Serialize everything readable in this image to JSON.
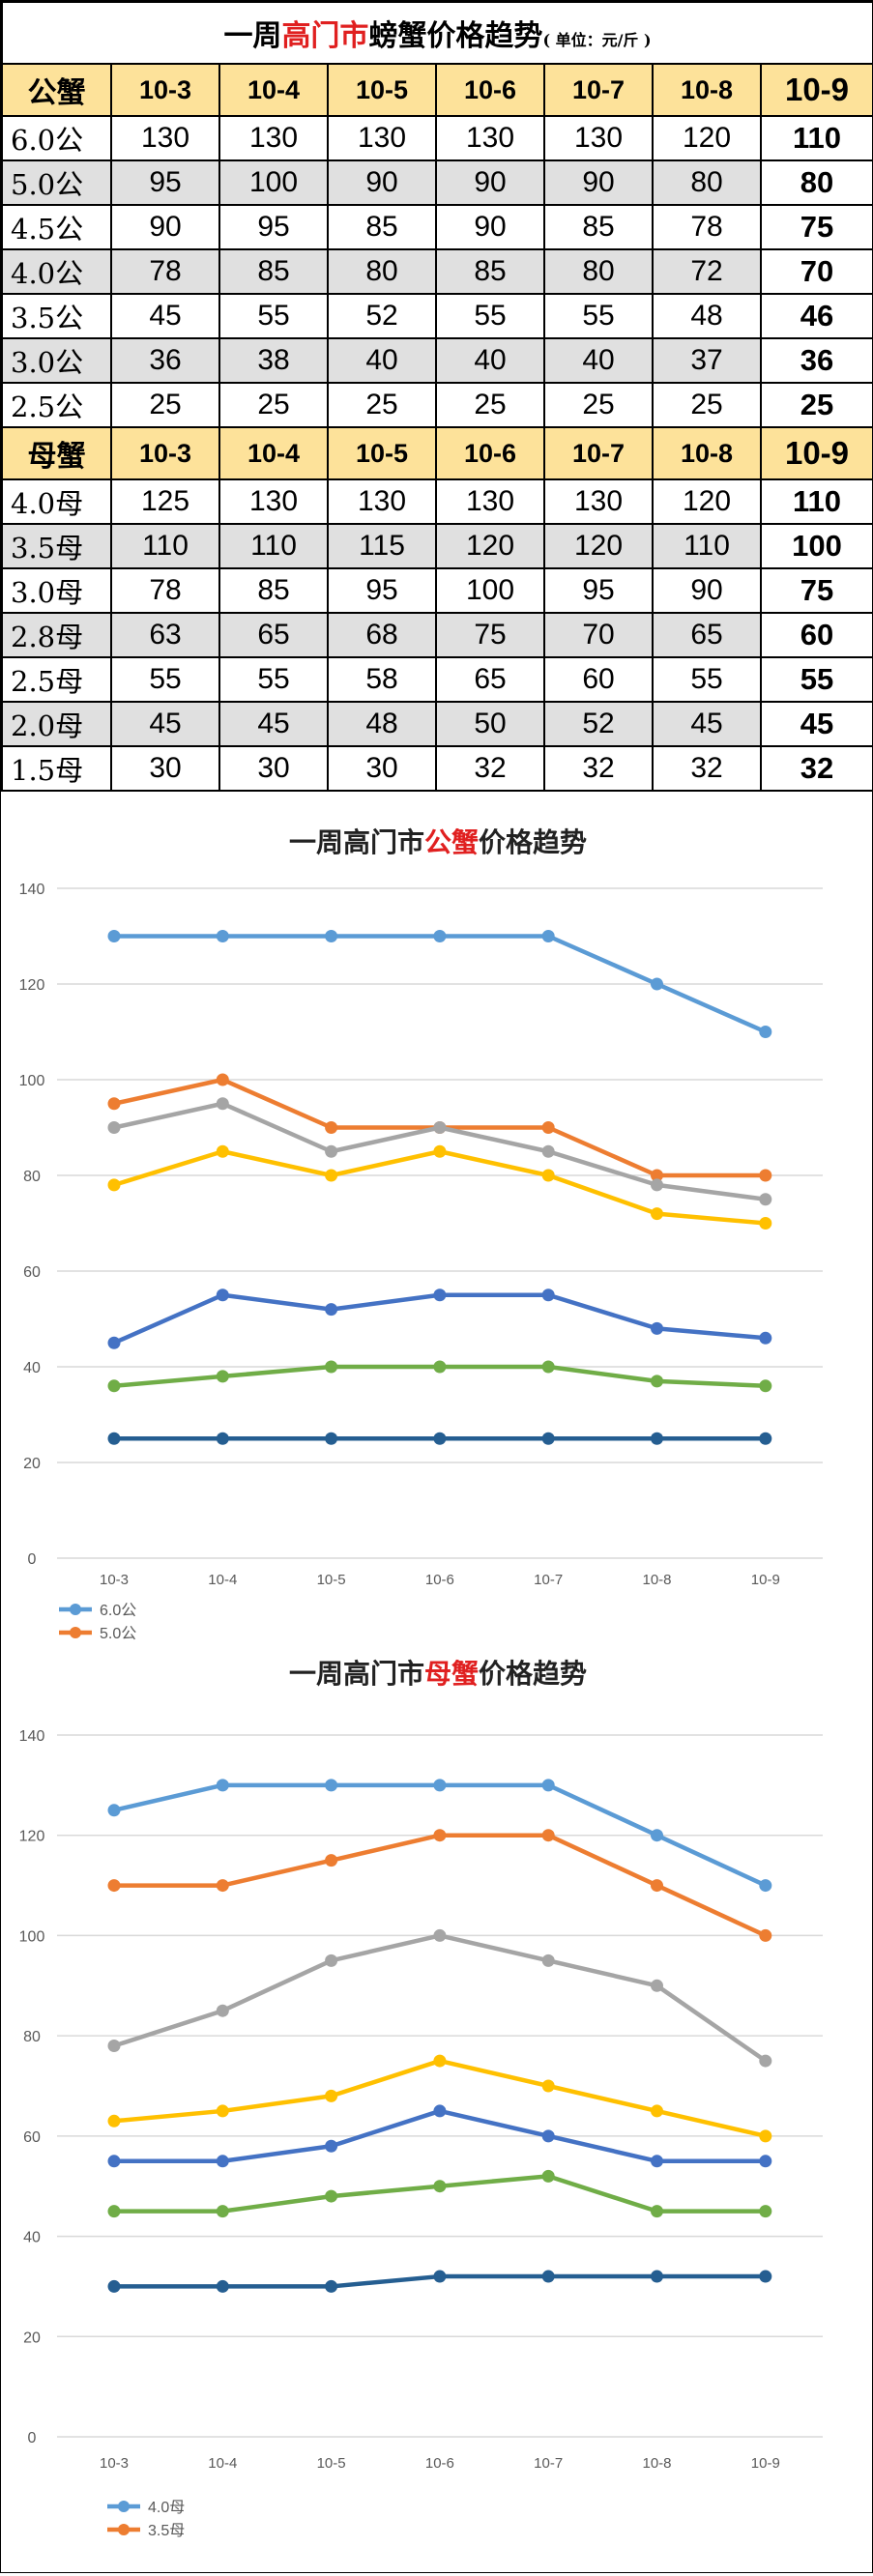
{
  "table": {
    "title_prefix": "一周",
    "title_highlight": "高门市",
    "title_suffix": "螃蟹价格趋势",
    "title_unit": "( 单位：元/斤 )",
    "dates": [
      "10-3",
      "10-4",
      "10-5",
      "10-6",
      "10-7",
      "10-8",
      "10-9"
    ],
    "male_header": "公蟹",
    "female_header": "母蟹",
    "male_rows": [
      {
        "label": "6.0公",
        "values": [
          130,
          130,
          130,
          130,
          130,
          120,
          110
        ]
      },
      {
        "label": "5.0公",
        "values": [
          95,
          100,
          90,
          90,
          90,
          80,
          80
        ]
      },
      {
        "label": "4.5公",
        "values": [
          90,
          95,
          85,
          90,
          85,
          78,
          75
        ]
      },
      {
        "label": "4.0公",
        "values": [
          78,
          85,
          80,
          85,
          80,
          72,
          70
        ]
      },
      {
        "label": "3.5公",
        "values": [
          45,
          55,
          52,
          55,
          55,
          48,
          46
        ]
      },
      {
        "label": "3.0公",
        "values": [
          36,
          38,
          40,
          40,
          40,
          37,
          36
        ]
      },
      {
        "label": "2.5公",
        "values": [
          25,
          25,
          25,
          25,
          25,
          25,
          25
        ]
      }
    ],
    "female_rows": [
      {
        "label": "4.0母",
        "values": [
          125,
          130,
          130,
          130,
          130,
          120,
          110
        ]
      },
      {
        "label": "3.5母",
        "values": [
          110,
          110,
          115,
          120,
          120,
          110,
          100
        ]
      },
      {
        "label": "3.0母",
        "values": [
          78,
          85,
          95,
          100,
          95,
          90,
          75
        ]
      },
      {
        "label": "2.8母",
        "values": [
          63,
          65,
          68,
          75,
          70,
          65,
          60
        ]
      },
      {
        "label": "2.5母",
        "values": [
          55,
          55,
          58,
          65,
          60,
          55,
          55
        ]
      },
      {
        "label": "2.0母",
        "values": [
          45,
          45,
          48,
          50,
          52,
          45,
          45
        ]
      },
      {
        "label": "1.5母",
        "values": [
          30,
          30,
          30,
          32,
          32,
          32,
          32
        ]
      }
    ]
  },
  "chart_data": [
    {
      "type": "line",
      "title_prefix": "一周高门市",
      "title_highlight": "公蟹",
      "title_suffix": "价格趋势",
      "x": [
        "10-3",
        "10-4",
        "10-5",
        "10-6",
        "10-7",
        "10-8",
        "10-9"
      ],
      "ylim": [
        0,
        140
      ],
      "yticks": [
        0,
        20,
        40,
        60,
        80,
        100,
        120,
        140
      ],
      "grid": true,
      "legend_position": "bottom-left",
      "series": [
        {
          "name": "6.0公",
          "color": "#5b9bd5",
          "legend": true,
          "values": [
            130,
            130,
            130,
            130,
            130,
            120,
            110
          ]
        },
        {
          "name": "5.0公",
          "color": "#ed7d31",
          "legend": true,
          "values": [
            95,
            100,
            90,
            90,
            90,
            80,
            80
          ]
        },
        {
          "color": "#a5a5a5",
          "values": [
            90,
            95,
            85,
            90,
            85,
            78,
            75
          ]
        },
        {
          "color": "#ffc000",
          "values": [
            78,
            85,
            80,
            85,
            80,
            72,
            70
          ]
        },
        {
          "color": "#4472c4",
          "values": [
            45,
            55,
            52,
            55,
            55,
            48,
            46
          ]
        },
        {
          "color": "#70ad47",
          "values": [
            36,
            38,
            40,
            40,
            40,
            37,
            36
          ]
        },
        {
          "color": "#255e91",
          "values": [
            25,
            25,
            25,
            25,
            25,
            25,
            25
          ]
        }
      ]
    },
    {
      "type": "line",
      "title_prefix": "一周高门市",
      "title_highlight": "母蟹",
      "title_suffix": "价格趋势",
      "x": [
        "10-3",
        "10-4",
        "10-5",
        "10-6",
        "10-7",
        "10-8",
        "10-9"
      ],
      "ylim": [
        0,
        140
      ],
      "yticks": [
        0,
        20,
        40,
        60,
        80,
        100,
        120,
        140
      ],
      "grid": true,
      "legend_position": "bottom-left",
      "series": [
        {
          "name": "4.0母",
          "color": "#5b9bd5",
          "legend": true,
          "values": [
            125,
            130,
            130,
            130,
            130,
            120,
            110
          ]
        },
        {
          "name": "3.5母",
          "color": "#ed7d31",
          "legend": true,
          "values": [
            110,
            110,
            115,
            120,
            120,
            110,
            100
          ]
        },
        {
          "color": "#a5a5a5",
          "values": [
            78,
            85,
            95,
            100,
            95,
            90,
            75
          ]
        },
        {
          "color": "#ffc000",
          "values": [
            63,
            65,
            68,
            75,
            70,
            65,
            60
          ]
        },
        {
          "color": "#4472c4",
          "values": [
            55,
            55,
            58,
            65,
            60,
            55,
            55
          ]
        },
        {
          "color": "#70ad47",
          "values": [
            45,
            45,
            48,
            50,
            52,
            45,
            45
          ]
        },
        {
          "color": "#255e91",
          "values": [
            30,
            30,
            30,
            32,
            32,
            32,
            32
          ]
        }
      ]
    }
  ]
}
